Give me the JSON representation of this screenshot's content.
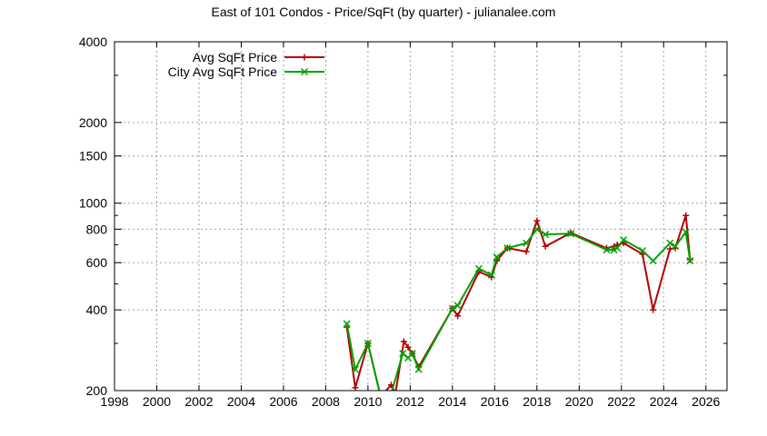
{
  "chart_data": {
    "type": "line",
    "title": "East of 101 Condos - Price/SqFt (by quarter) - julianalee.com",
    "xlabel": "",
    "ylabel": "",
    "x_scale": "linear",
    "y_scale": "log",
    "xlim": [
      1998,
      2027
    ],
    "ylim": [
      200,
      4000
    ],
    "x_ticks": [
      "1998",
      "2000",
      "2002",
      "2004",
      "2006",
      "2008",
      "2010",
      "2012",
      "2014",
      "2016",
      "2018",
      "2020",
      "2022",
      "2024",
      "2026"
    ],
    "y_ticks": [
      "200",
      "400",
      "600",
      "800",
      "1000",
      "1500",
      "2000",
      "4000"
    ],
    "grid": true,
    "legend_position": "top-left",
    "series": [
      {
        "name": "Avg SqFt Price",
        "color": "#b30000",
        "marker": "plus",
        "points": [
          [
            2009.0,
            345
          ],
          [
            2009.4,
            205
          ],
          [
            2010.0,
            300
          ],
          [
            2010.6,
            190
          ],
          [
            2011.1,
            210
          ],
          [
            2011.3,
            195
          ],
          [
            2011.7,
            305
          ],
          [
            2011.9,
            290
          ],
          [
            2012.1,
            275
          ],
          [
            2012.4,
            245
          ],
          [
            2014.0,
            405
          ],
          [
            2014.25,
            380
          ],
          [
            2015.25,
            555
          ],
          [
            2015.85,
            530
          ],
          [
            2016.1,
            610
          ],
          [
            2016.6,
            680
          ],
          [
            2017.5,
            660
          ],
          [
            2018.0,
            860
          ],
          [
            2018.4,
            690
          ],
          [
            2019.6,
            775
          ],
          [
            2021.3,
            680
          ],
          [
            2021.65,
            690
          ],
          [
            2021.8,
            700
          ],
          [
            2022.1,
            710
          ],
          [
            2023.0,
            645
          ],
          [
            2023.5,
            400
          ],
          [
            2024.3,
            675
          ],
          [
            2024.55,
            680
          ],
          [
            2025.05,
            900
          ],
          [
            2025.25,
            615
          ]
        ]
      },
      {
        "name": "City Avg SqFt Price",
        "color": "#00a000",
        "marker": "cross",
        "points": [
          [
            2009.0,
            355
          ],
          [
            2009.4,
            240
          ],
          [
            2010.0,
            300
          ],
          [
            2010.6,
            190
          ],
          [
            2011.1,
            195
          ],
          [
            2011.65,
            275
          ],
          [
            2011.9,
            265
          ],
          [
            2012.1,
            275
          ],
          [
            2012.4,
            240
          ],
          [
            2014.0,
            405
          ],
          [
            2014.25,
            415
          ],
          [
            2015.25,
            570
          ],
          [
            2015.85,
            540
          ],
          [
            2016.1,
            630
          ],
          [
            2016.6,
            680
          ],
          [
            2017.5,
            710
          ],
          [
            2018.0,
            800
          ],
          [
            2018.4,
            765
          ],
          [
            2019.6,
            770
          ],
          [
            2021.3,
            670
          ],
          [
            2021.65,
            670
          ],
          [
            2021.8,
            680
          ],
          [
            2022.1,
            730
          ],
          [
            2023.0,
            665
          ],
          [
            2023.5,
            610
          ],
          [
            2024.3,
            710
          ],
          [
            2024.55,
            690
          ],
          [
            2025.05,
            780
          ],
          [
            2025.25,
            610
          ]
        ]
      }
    ]
  }
}
